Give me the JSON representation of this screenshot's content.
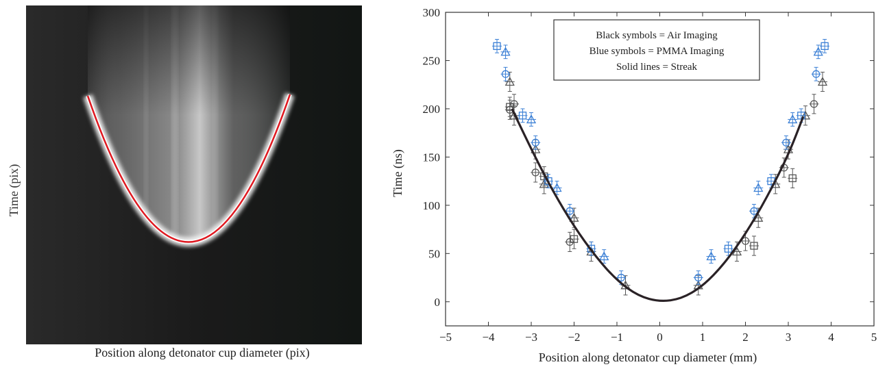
{
  "streak_image": {
    "xlabel": "Position along detonator cup diameter (pix)",
    "ylabel": "Time (pix)",
    "colors": {
      "background": "#151515",
      "fit_curve": "#e0161e",
      "glow": "#e8e8e8"
    }
  },
  "chart_data": {
    "type": "scatter",
    "xlabel": "Position along detonator cup diameter (mm)",
    "ylabel": "Time (ns)",
    "xlim": [
      -5,
      5
    ],
    "ylim": [
      -25,
      300
    ],
    "xticks": [
      "−5",
      "−4",
      "−3",
      "−2",
      "−1",
      "0",
      "1",
      "2",
      "3",
      "4",
      "5"
    ],
    "yticks": [
      "0",
      "50",
      "100",
      "150",
      "200",
      "250",
      "300"
    ],
    "grid": false,
    "legend": {
      "placement": "top-center",
      "lines": [
        "Black symbols = Air Imaging",
        "Blue symbols = PMMA Imaging",
        "Solid lines = Streak"
      ]
    },
    "colors": {
      "air": "#555555",
      "pmma": "#3a7fd5",
      "streak": "#2a2226"
    },
    "series": [
      {
        "group": "air",
        "marker": "circle",
        "err": 10,
        "points": [
          [
            -3.5,
            199
          ],
          [
            -3.4,
            205
          ],
          [
            -2.9,
            134
          ],
          [
            -2.1,
            62
          ],
          [
            2.0,
            63
          ],
          [
            2.9,
            139
          ],
          [
            3.6,
            205
          ]
        ]
      },
      {
        "group": "air",
        "marker": "triangle",
        "err": 10,
        "points": [
          [
            -3.5,
            228
          ],
          [
            -3.4,
            193
          ],
          [
            -2.9,
            158
          ],
          [
            -2.7,
            122
          ],
          [
            -2.0,
            87
          ],
          [
            -1.6,
            52
          ],
          [
            -0.8,
            17
          ],
          [
            0.9,
            17
          ],
          [
            1.8,
            52
          ],
          [
            2.3,
            87
          ],
          [
            2.7,
            122
          ],
          [
            3.0,
            158
          ],
          [
            3.4,
            193
          ],
          [
            3.8,
            228
          ]
        ]
      },
      {
        "group": "air",
        "marker": "square",
        "err": 10,
        "points": [
          [
            -3.5,
            202
          ],
          [
            -2.7,
            130
          ],
          [
            -2.0,
            65
          ],
          [
            2.2,
            58
          ],
          [
            3.1,
            128
          ]
        ]
      },
      {
        "group": "pmma",
        "marker": "circle",
        "err": 7,
        "points": [
          [
            -3.6,
            236
          ],
          [
            -2.9,
            165
          ],
          [
            -2.1,
            94
          ],
          [
            -0.9,
            25
          ],
          [
            0.9,
            25
          ],
          [
            2.2,
            94
          ],
          [
            2.95,
            165
          ],
          [
            3.65,
            236
          ]
        ]
      },
      {
        "group": "pmma",
        "marker": "triangle",
        "err": 7,
        "points": [
          [
            -3.6,
            259
          ],
          [
            -3.0,
            189
          ],
          [
            -2.4,
            118
          ],
          [
            -1.3,
            47
          ],
          [
            1.2,
            47
          ],
          [
            2.3,
            118
          ],
          [
            3.1,
            189
          ],
          [
            3.7,
            259
          ]
        ]
      },
      {
        "group": "pmma",
        "marker": "square",
        "err": 7,
        "points": [
          [
            -3.8,
            265
          ],
          [
            -3.2,
            193
          ],
          [
            -2.6,
            125
          ],
          [
            -1.6,
            55
          ],
          [
            1.6,
            55
          ],
          [
            2.6,
            125
          ],
          [
            3.3,
            193
          ],
          [
            3.85,
            265
          ]
        ]
      }
    ],
    "streak": {
      "group": "streak",
      "points": [
        [
          -3.45,
          200
        ],
        [
          -3.0,
          158
        ],
        [
          -2.5,
          115
        ],
        [
          -2.0,
          78
        ],
        [
          -1.5,
          47
        ],
        [
          -1.0,
          22
        ],
        [
          -0.5,
          6
        ],
        [
          0.0,
          0
        ],
        [
          0.5,
          3
        ],
        [
          1.0,
          16
        ],
        [
          1.5,
          39
        ],
        [
          2.0,
          70
        ],
        [
          2.5,
          108
        ],
        [
          3.0,
          152
        ],
        [
          3.35,
          192
        ]
      ]
    }
  }
}
